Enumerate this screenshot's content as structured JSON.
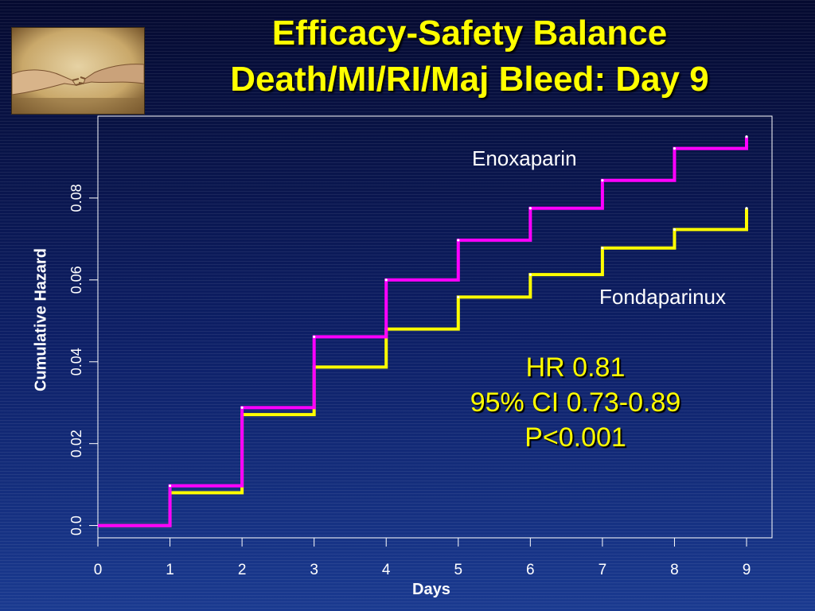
{
  "slide": {
    "title_line1": "Efficacy-Safety Balance",
    "title_line2": "Death/MI/RI/Maj Bleed: Day 9",
    "image_alt": "Creation of Adam fresco detail"
  },
  "annotations": {
    "enoxaparin_label": "Enoxaparin",
    "fondaparinux_label": "Fondaparinux",
    "hr": "HR 0.81",
    "ci": "95% CI 0.73-0.89",
    "p": "P<0.001"
  },
  "colors": {
    "background": "#0a1550",
    "title": "#ffff00",
    "enoxaparin": "#ff00ff",
    "fondaparinux": "#ffff00",
    "axis": "#ffffff"
  },
  "chart_data": {
    "type": "line",
    "step": true,
    "xlabel": "Days",
    "ylabel": "Cumulative Hazard",
    "xlim": [
      0,
      9
    ],
    "ylim": [
      -0.003,
      0.1
    ],
    "x_ticks": [
      0,
      1,
      2,
      3,
      4,
      5,
      6,
      7,
      8,
      9
    ],
    "x_tick_labels": [
      "0",
      "1",
      "2",
      "3",
      "4",
      "5",
      "6",
      "7",
      "8",
      "9"
    ],
    "y_ticks": [
      0.0,
      0.02,
      0.04,
      0.06,
      0.08
    ],
    "y_tick_labels": [
      "0.0",
      "0.02",
      "0.04",
      "0.06",
      "0.08"
    ],
    "grid": false,
    "x": [
      0,
      1,
      2,
      3,
      4,
      5,
      6,
      7,
      8,
      9
    ],
    "series": [
      {
        "name": "Enoxaparin",
        "color": "#ff00ff",
        "values": [
          0.0,
          0.0097,
          0.0288,
          0.0461,
          0.06,
          0.0697,
          0.0775,
          0.0843,
          0.0921,
          0.095
        ]
      },
      {
        "name": "Fondaparinux",
        "color": "#ffff00",
        "values": [
          0.0,
          0.008,
          0.0271,
          0.0387,
          0.048,
          0.0558,
          0.0613,
          0.0678,
          0.0723,
          0.0775
        ]
      }
    ]
  }
}
